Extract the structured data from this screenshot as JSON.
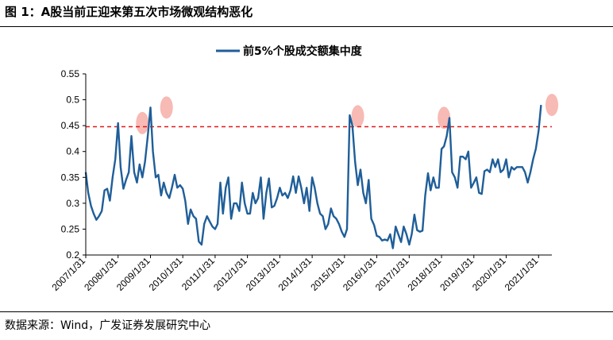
{
  "figure_title": "图 1：A股当前正迎来第五次市场微观结构恶化",
  "source_note": "数据来源：Wind，广发证券发展研究中心",
  "colors": {
    "series": "#1f5e99",
    "threshold": "#e0181a",
    "highlight": "#f4a39b"
  },
  "chart_data": {
    "type": "line",
    "title": "",
    "xlabel": "",
    "ylabel": "",
    "ylim": [
      0.2,
      0.55
    ],
    "yticks": [
      0.2,
      0.25,
      0.3,
      0.35,
      0.4,
      0.45,
      0.5,
      0.55
    ],
    "ytick_labels": [
      "0.2",
      "0.25",
      "0.3",
      "0.35",
      "0.4",
      "0.45",
      "0.5",
      "0.55"
    ],
    "xlim": [
      "2007/1/31",
      "2021/6/30"
    ],
    "xtick_labels": [
      "2007/1/31",
      "2008/1/31",
      "2009/1/31",
      "2010/1/31",
      "2011/1/31",
      "2012/1/31",
      "2013/1/31",
      "2014/1/31",
      "2015/1/31",
      "2016/1/31",
      "2017/1/31",
      "2018/1/31",
      "2019/1/31",
      "2020/1/31",
      "2021/1/31"
    ],
    "grid": false,
    "legend_position": "top-center",
    "threshold": 0.448,
    "highlights": [
      {
        "x": "2008/10/31",
        "y": 0.455
      },
      {
        "x": "2009/7/31",
        "y": 0.485
      },
      {
        "x": "2015/6/30",
        "y": 0.468
      },
      {
        "x": "2018/2/28",
        "y": 0.465
      },
      {
        "x": "2021/6/30",
        "y": 0.49
      }
    ],
    "series": [
      {
        "name": "前5%个股成交额集中度",
        "points": [
          [
            "2007/1/31",
            0.36
          ],
          [
            "2007/2/28",
            0.32
          ],
          [
            "2007/3/31",
            0.295
          ],
          [
            "2007/4/30",
            0.28
          ],
          [
            "2007/5/31",
            0.268
          ],
          [
            "2007/6/30",
            0.275
          ],
          [
            "2007/7/31",
            0.285
          ],
          [
            "2007/8/31",
            0.325
          ],
          [
            "2007/9/30",
            0.328
          ],
          [
            "2007/10/31",
            0.305
          ],
          [
            "2007/11/30",
            0.35
          ],
          [
            "2007/12/31",
            0.385
          ],
          [
            "2008/1/31",
            0.455
          ],
          [
            "2008/2/29",
            0.37
          ],
          [
            "2008/3/31",
            0.328
          ],
          [
            "2008/4/30",
            0.345
          ],
          [
            "2008/5/31",
            0.36
          ],
          [
            "2008/6/30",
            0.43
          ],
          [
            "2008/7/31",
            0.36
          ],
          [
            "2008/8/31",
            0.34
          ],
          [
            "2008/9/30",
            0.375
          ],
          [
            "2008/10/31",
            0.35
          ],
          [
            "2008/11/30",
            0.38
          ],
          [
            "2008/12/31",
            0.43
          ],
          [
            "2009/1/31",
            0.485
          ],
          [
            "2009/2/28",
            0.4
          ],
          [
            "2009/3/31",
            0.35
          ],
          [
            "2009/4/30",
            0.355
          ],
          [
            "2009/5/31",
            0.315
          ],
          [
            "2009/6/30",
            0.34
          ],
          [
            "2009/7/31",
            0.32
          ],
          [
            "2009/8/31",
            0.31
          ],
          [
            "2009/9/30",
            0.33
          ],
          [
            "2009/10/31",
            0.355
          ],
          [
            "2009/11/30",
            0.33
          ],
          [
            "2009/12/31",
            0.335
          ],
          [
            "2010/1/31",
            0.328
          ],
          [
            "2010/2/28",
            0.305
          ],
          [
            "2010/3/31",
            0.26
          ],
          [
            "2010/4/30",
            0.288
          ],
          [
            "2010/5/31",
            0.275
          ],
          [
            "2010/6/30",
            0.27
          ],
          [
            "2010/7/31",
            0.226
          ],
          [
            "2010/8/31",
            0.22
          ],
          [
            "2010/9/30",
            0.26
          ],
          [
            "2010/10/31",
            0.275
          ],
          [
            "2010/11/30",
            0.265
          ],
          [
            "2010/12/31",
            0.255
          ],
          [
            "2011/1/31",
            0.25
          ],
          [
            "2011/2/28",
            0.26
          ],
          [
            "2011/3/31",
            0.34
          ],
          [
            "2011/4/30",
            0.28
          ],
          [
            "2011/5/31",
            0.33
          ],
          [
            "2011/6/30",
            0.35
          ],
          [
            "2011/7/31",
            0.27
          ],
          [
            "2011/8/31",
            0.3
          ],
          [
            "2011/9/30",
            0.3
          ],
          [
            "2011/10/31",
            0.285
          ],
          [
            "2011/11/30",
            0.34
          ],
          [
            "2011/12/31",
            0.3
          ],
          [
            "2012/1/31",
            0.28
          ],
          [
            "2012/2/29",
            0.28
          ],
          [
            "2012/3/31",
            0.32
          ],
          [
            "2012/4/30",
            0.3
          ],
          [
            "2012/5/31",
            0.31
          ],
          [
            "2012/6/30",
            0.35
          ],
          [
            "2012/7/31",
            0.27
          ],
          [
            "2012/8/31",
            0.32
          ],
          [
            "2012/9/30",
            0.348
          ],
          [
            "2012/10/31",
            0.292
          ],
          [
            "2012/11/30",
            0.295
          ],
          [
            "2012/12/31",
            0.31
          ],
          [
            "2013/1/31",
            0.33
          ],
          [
            "2013/2/28",
            0.315
          ],
          [
            "2013/3/31",
            0.32
          ],
          [
            "2013/4/30",
            0.31
          ],
          [
            "2013/5/31",
            0.325
          ],
          [
            "2013/6/30",
            0.352
          ],
          [
            "2013/7/31",
            0.32
          ],
          [
            "2013/8/31",
            0.352
          ],
          [
            "2013/9/30",
            0.33
          ],
          [
            "2013/10/31",
            0.3
          ],
          [
            "2013/11/30",
            0.33
          ],
          [
            "2013/12/31",
            0.285
          ],
          [
            "2014/1/31",
            0.35
          ],
          [
            "2014/2/28",
            0.33
          ],
          [
            "2014/3/31",
            0.3
          ],
          [
            "2014/4/30",
            0.28
          ],
          [
            "2014/5/31",
            0.275
          ],
          [
            "2014/6/30",
            0.25
          ],
          [
            "2014/7/31",
            0.26
          ],
          [
            "2014/8/31",
            0.29
          ],
          [
            "2014/9/30",
            0.275
          ],
          [
            "2014/10/31",
            0.27
          ],
          [
            "2014/11/30",
            0.26
          ],
          [
            "2014/12/31",
            0.245
          ],
          [
            "2015/1/31",
            0.235
          ],
          [
            "2015/2/28",
            0.25
          ],
          [
            "2015/3/31",
            0.47
          ],
          [
            "2015/4/30",
            0.45
          ],
          [
            "2015/5/31",
            0.38
          ],
          [
            "2015/6/30",
            0.335
          ],
          [
            "2015/7/31",
            0.365
          ],
          [
            "2015/8/31",
            0.32
          ],
          [
            "2015/9/30",
            0.3
          ],
          [
            "2015/10/31",
            0.345
          ],
          [
            "2015/11/30",
            0.27
          ],
          [
            "2015/12/31",
            0.258
          ],
          [
            "2016/1/31",
            0.237
          ],
          [
            "2016/2/29",
            0.235
          ],
          [
            "2016/3/31",
            0.228
          ],
          [
            "2016/4/30",
            0.23
          ],
          [
            "2016/5/31",
            0.228
          ],
          [
            "2016/6/30",
            0.24
          ],
          [
            "2016/7/31",
            0.213
          ],
          [
            "2016/8/31",
            0.255
          ],
          [
            "2016/9/30",
            0.24
          ],
          [
            "2016/10/31",
            0.225
          ],
          [
            "2016/11/30",
            0.255
          ],
          [
            "2016/12/31",
            0.24
          ],
          [
            "2017/1/31",
            0.22
          ],
          [
            "2017/2/28",
            0.24
          ],
          [
            "2017/3/31",
            0.278
          ],
          [
            "2017/4/30",
            0.248
          ],
          [
            "2017/5/31",
            0.245
          ],
          [
            "2017/6/30",
            0.247
          ],
          [
            "2017/7/31",
            0.315
          ],
          [
            "2017/8/31",
            0.358
          ],
          [
            "2017/9/30",
            0.325
          ],
          [
            "2017/10/31",
            0.35
          ],
          [
            "2017/11/30",
            0.33
          ],
          [
            "2017/12/31",
            0.33
          ],
          [
            "2018/1/31",
            0.405
          ],
          [
            "2018/2/28",
            0.41
          ],
          [
            "2018/3/31",
            0.43
          ],
          [
            "2018/4/30",
            0.465
          ],
          [
            "2018/5/31",
            0.36
          ],
          [
            "2018/6/30",
            0.35
          ],
          [
            "2018/7/31",
            0.33
          ],
          [
            "2018/8/31",
            0.39
          ],
          [
            "2018/9/30",
            0.39
          ],
          [
            "2018/10/31",
            0.385
          ],
          [
            "2018/11/30",
            0.4
          ],
          [
            "2018/12/31",
            0.33
          ],
          [
            "2019/1/31",
            0.34
          ],
          [
            "2019/2/28",
            0.35
          ],
          [
            "2019/3/31",
            0.32
          ],
          [
            "2019/4/30",
            0.318
          ],
          [
            "2019/5/31",
            0.362
          ],
          [
            "2019/6/30",
            0.365
          ],
          [
            "2019/7/31",
            0.36
          ],
          [
            "2019/8/31",
            0.385
          ],
          [
            "2019/9/30",
            0.37
          ],
          [
            "2019/10/31",
            0.385
          ],
          [
            "2019/11/30",
            0.36
          ],
          [
            "2019/12/31",
            0.365
          ],
          [
            "2020/1/31",
            0.385
          ],
          [
            "2020/2/29",
            0.35
          ],
          [
            "2020/3/31",
            0.37
          ],
          [
            "2020/4/30",
            0.365
          ],
          [
            "2020/5/31",
            0.37
          ],
          [
            "2020/6/30",
            0.37
          ],
          [
            "2020/7/31",
            0.37
          ],
          [
            "2020/8/31",
            0.36
          ],
          [
            "2020/9/30",
            0.34
          ],
          [
            "2020/10/31",
            0.36
          ],
          [
            "2020/11/30",
            0.385
          ],
          [
            "2020/12/31",
            0.405
          ],
          [
            "2021/1/31",
            0.44
          ],
          [
            "2021/2/28",
            0.49
          ]
        ]
      }
    ]
  }
}
